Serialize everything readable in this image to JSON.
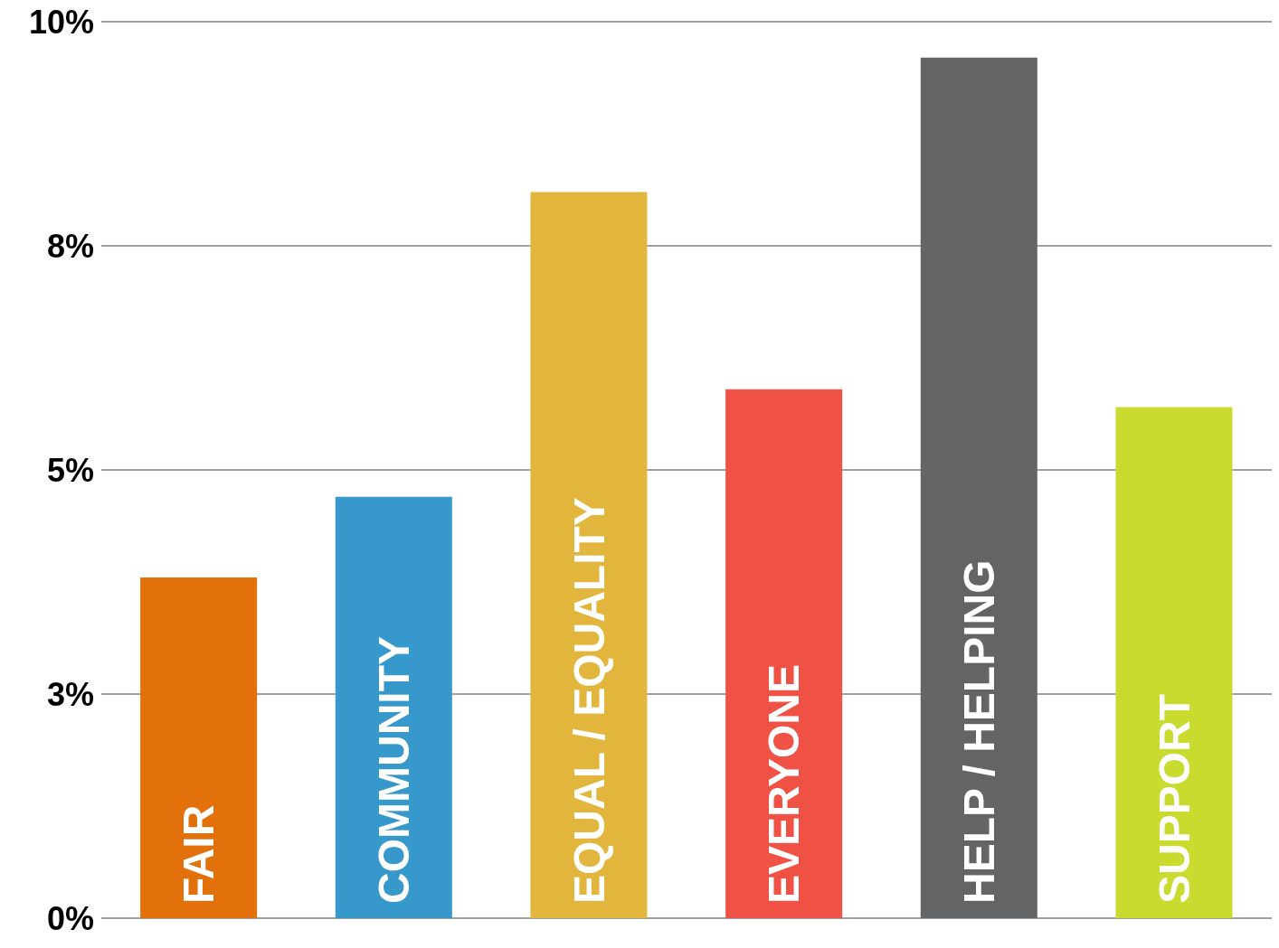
{
  "chart_data": {
    "type": "bar",
    "categories": [
      "FAIR",
      "COMMUNITY",
      "EQUAL / EQUALITY",
      "EVERYONE",
      "HELP / HELPING",
      "SUPPORT"
    ],
    "values": [
      3.8,
      4.7,
      8.1,
      5.9,
      9.6,
      5.7
    ],
    "colors": [
      "#e2710b",
      "#3799cb",
      "#e2b63c",
      "#ef5244",
      "#636466",
      "#c8db2e"
    ],
    "ylim": [
      0,
      10
    ],
    "yticks": [
      {
        "value": 0,
        "label": "0%"
      },
      {
        "value": 2.5,
        "label": "3%"
      },
      {
        "value": 5,
        "label": "5%"
      },
      {
        "value": 7.5,
        "label": "8%"
      },
      {
        "value": 10,
        "label": "10%"
      }
    ],
    "grid": "y"
  }
}
